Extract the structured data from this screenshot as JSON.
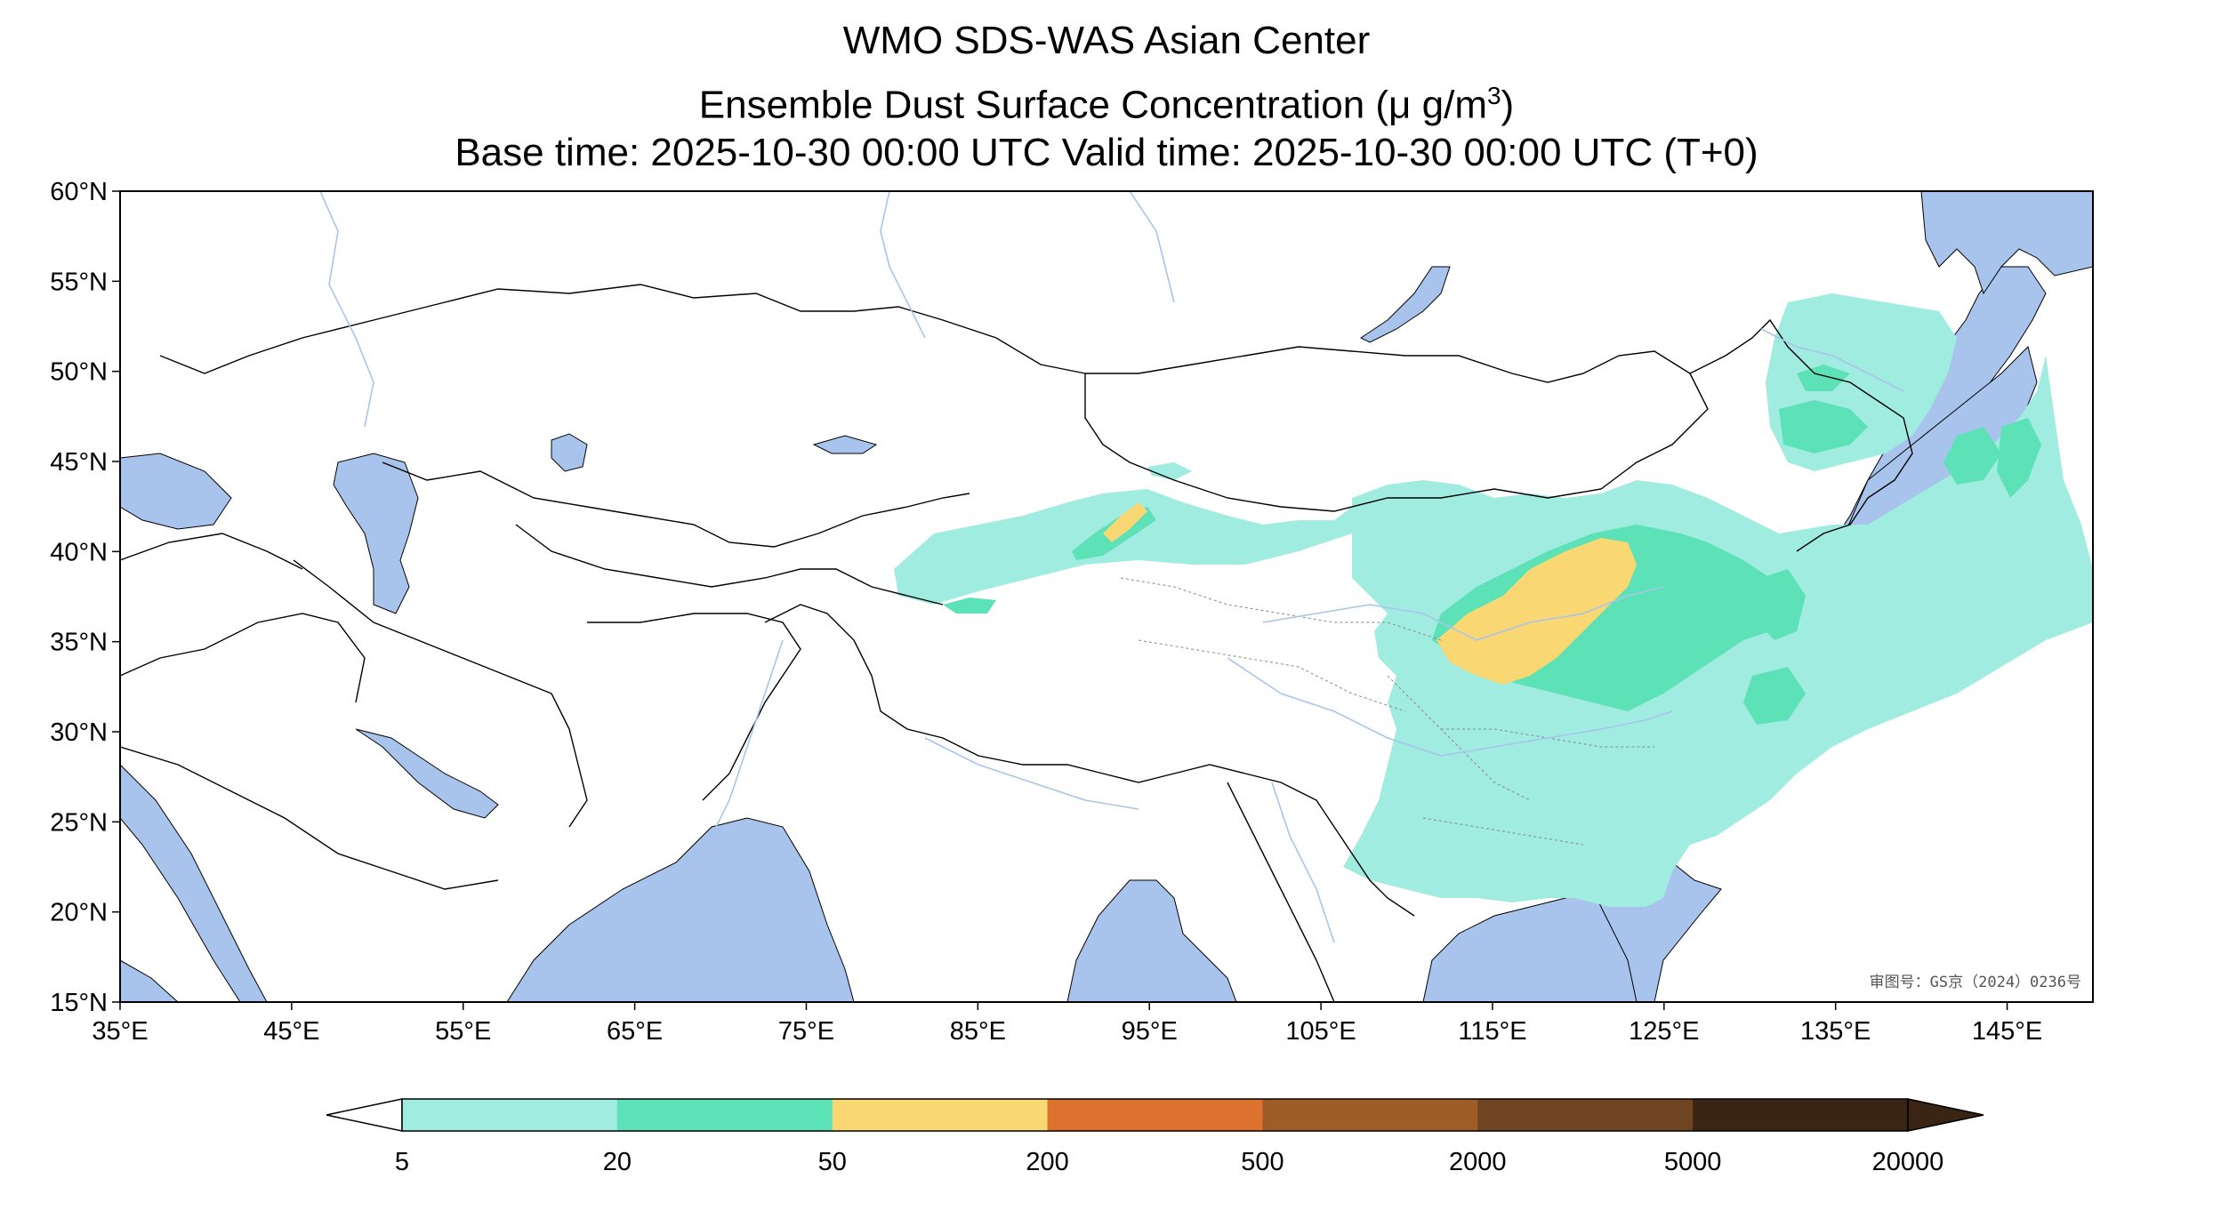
{
  "title": {
    "line1": "WMO SDS-WAS Asian Center",
    "line2": "Ensemble Dust Surface Concentration (μ g/m",
    "line2_sup": "3",
    "line2_end": ")",
    "line3": "Base time: 2025-10-30 00:00 UTC Valid time: 2025-10-30 00:00 UTC (T+0)"
  },
  "map": {
    "lon_range": [
      35,
      150
    ],
    "lat_range": [
      15,
      60
    ],
    "lon_ticks": [
      "35°E",
      "45°E",
      "55°E",
      "65°E",
      "75°E",
      "85°E",
      "95°E",
      "105°E",
      "115°E",
      "125°E",
      "135°E",
      "145°E"
    ],
    "lat_ticks": [
      "15°N",
      "20°N",
      "25°N",
      "30°N",
      "35°N",
      "40°N",
      "45°N",
      "50°N",
      "55°N",
      "60°N"
    ],
    "watermark": "审图号：GS京（2024）0236号",
    "colors": {
      "ocean": "#a9c4ec",
      "land": "#ffffff",
      "border": "#000000",
      "river": "#a9c4ec"
    }
  },
  "colorbar": {
    "labels": [
      "5",
      "20",
      "50",
      "200",
      "500",
      "2000",
      "5000",
      "20000"
    ],
    "colors": [
      "#a1ece0",
      "#5de1b7",
      "#f9d772",
      "#dd7230",
      "#9e5c26",
      "#6e4520",
      "#3a2414"
    ],
    "extend": "both"
  }
}
